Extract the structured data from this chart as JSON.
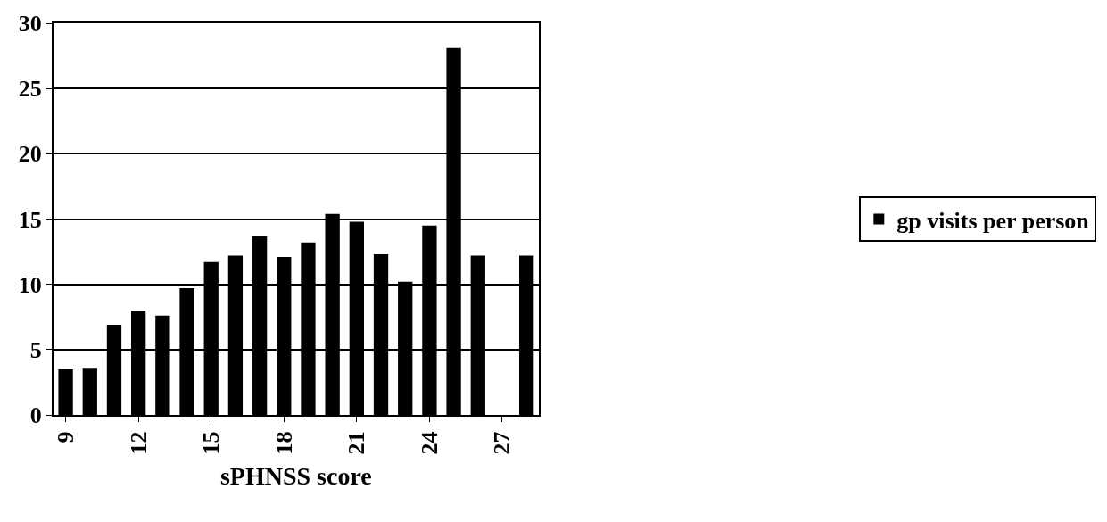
{
  "chart_data": {
    "type": "bar",
    "xlabel": "sPHNSS score",
    "categories": [
      "9",
      null,
      null,
      "12",
      null,
      null,
      "15",
      null,
      null,
      "18",
      null,
      null,
      "21",
      null,
      null,
      "24",
      null,
      null,
      "27",
      null
    ],
    "series": [
      {
        "name": "gp visits per person",
        "color": "#000000",
        "values": [
          3.5,
          3.6,
          6.9,
          8.0,
          7.6,
          9.7,
          11.7,
          12.2,
          13.7,
          12.1,
          13.2,
          15.4,
          14.8,
          12.3,
          10.2,
          14.5,
          28.1,
          12.2,
          null,
          12.2
        ]
      }
    ],
    "ylim": [
      0,
      30
    ],
    "yticks": [
      0,
      5,
      10,
      15,
      20,
      25,
      30
    ],
    "grid": "y",
    "legend": "right"
  }
}
